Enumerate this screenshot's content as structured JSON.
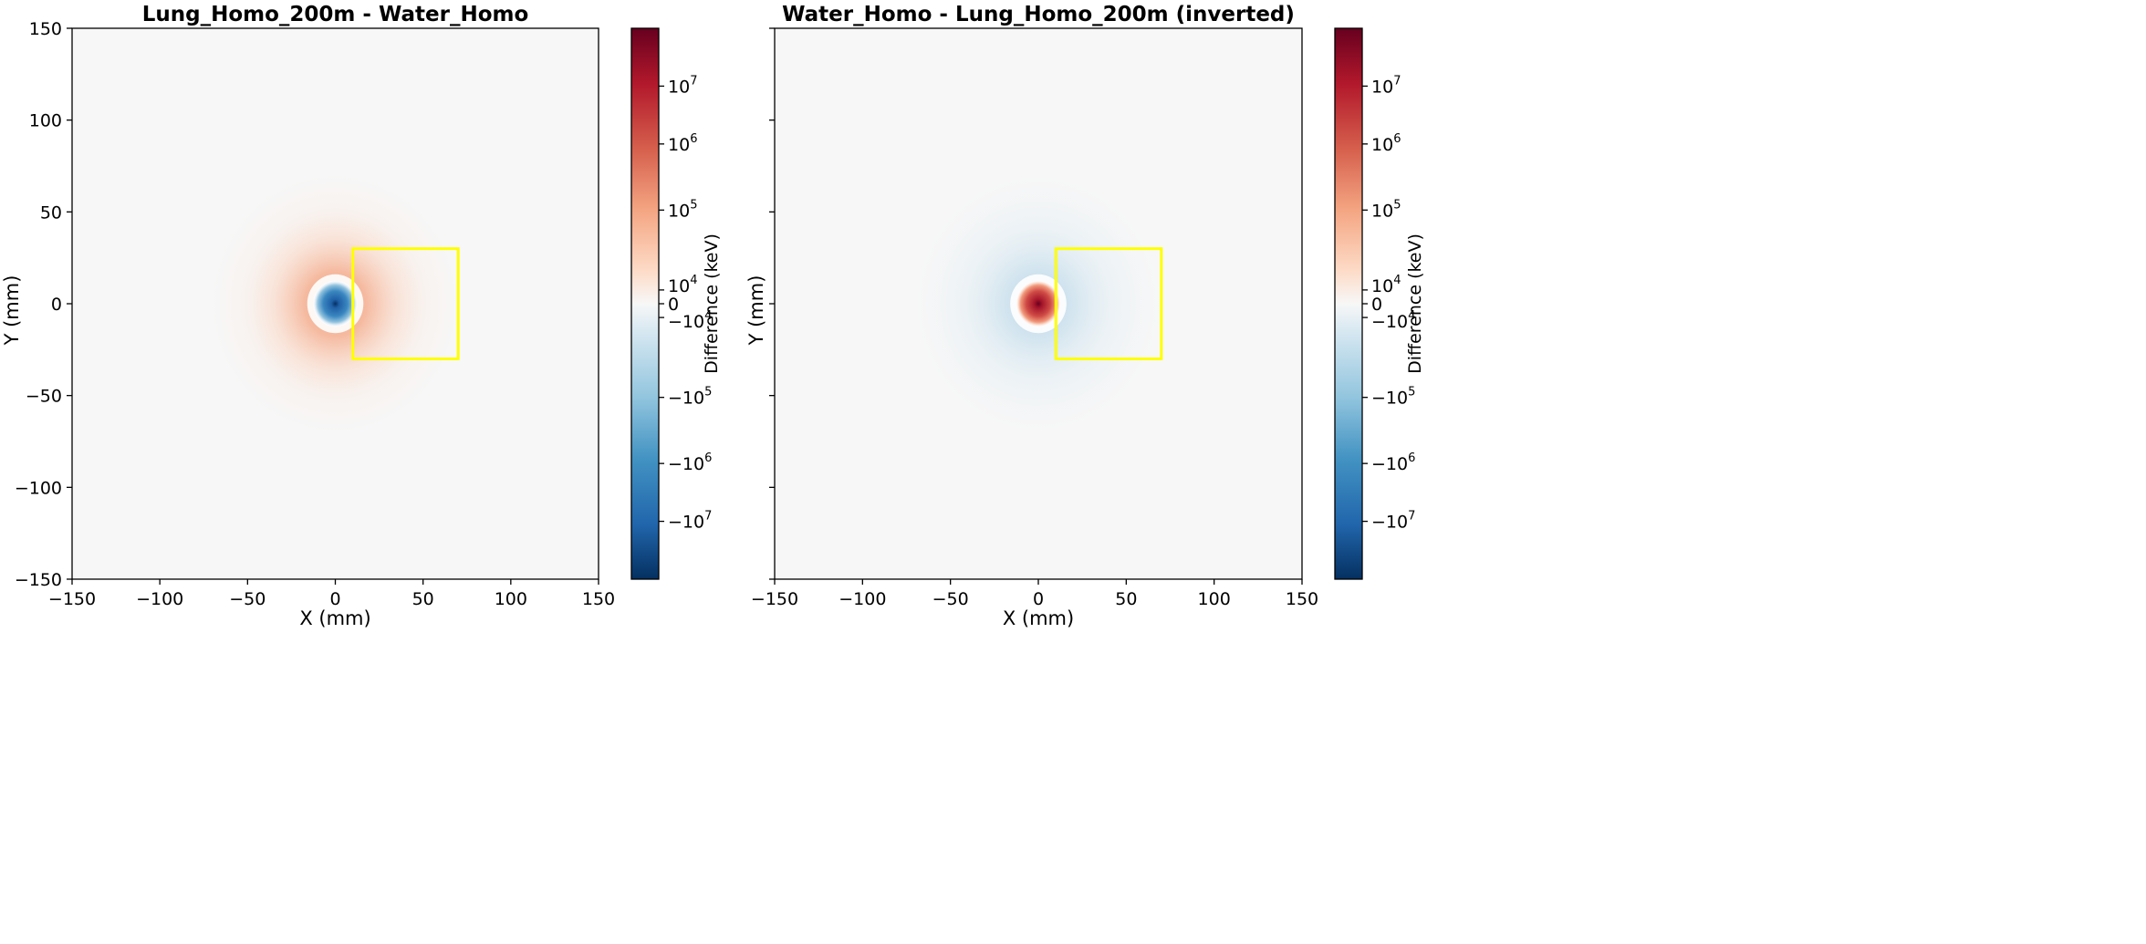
{
  "chart_data": [
    {
      "type": "heatmap",
      "title": "Lung_Homo_200m - Water_Homo",
      "xlabel": "X (mm)",
      "ylabel": "Y (mm)",
      "xlim": [
        -150,
        150
      ],
      "ylim": [
        -150,
        150
      ],
      "xticks": [
        -150,
        -100,
        -50,
        0,
        50,
        100,
        150
      ],
      "yticks": [
        -150,
        -100,
        -50,
        0,
        50,
        100,
        150
      ],
      "xtick_labels": [
        "−150",
        "−100",
        "−50",
        "0",
        "50",
        "100",
        "150"
      ],
      "ytick_labels": [
        "−150",
        "−100",
        "−50",
        "0",
        "50",
        "100",
        "150"
      ],
      "colormap": "RdBu_r",
      "scale": "symlog",
      "center": [
        0,
        0
      ],
      "core_sign": "negative",
      "halo_sign": "positive",
      "roi_box": {
        "x": [
          10,
          70
        ],
        "y": [
          -30,
          30
        ],
        "color": "#ffff00"
      },
      "colorbar": {
        "label": "Difference (keV)",
        "ticks": [
          {
            "sup": "7",
            "value": 10000000
          },
          {
            "sup": "6",
            "value": 1000000
          },
          {
            "sup": "5",
            "value": 100000
          },
          {
            "sup": "4",
            "value": 10000
          },
          {
            "text": "0",
            "value": 0
          },
          {
            "sup": "4",
            "value": -10000,
            "neg": true
          },
          {
            "sup": "5",
            "value": -100000,
            "neg": true
          },
          {
            "sup": "6",
            "value": -1000000,
            "neg": true
          },
          {
            "sup": "7",
            "value": -10000000,
            "neg": true
          }
        ]
      }
    },
    {
      "type": "heatmap",
      "title": "Water_Homo - Lung_Homo_200m (inverted)",
      "xlabel": "X (mm)",
      "ylabel": "Y (mm)",
      "xlim": [
        -150,
        150
      ],
      "ylim": [
        -150,
        150
      ],
      "xticks": [
        -150,
        -100,
        -50,
        0,
        50,
        100,
        150
      ],
      "yticks": [
        -150,
        -100,
        -50,
        0,
        50,
        100,
        150
      ],
      "xtick_labels": [
        "−150",
        "−100",
        "−50",
        "0",
        "50",
        "100",
        "150"
      ],
      "colormap": "RdBu_r",
      "scale": "symlog",
      "center": [
        0,
        0
      ],
      "core_sign": "positive",
      "halo_sign": "negative",
      "roi_box": {
        "x": [
          10,
          70
        ],
        "y": [
          -30,
          30
        ],
        "color": "#ffff00"
      },
      "colorbar": {
        "label": "Difference (keV)",
        "ticks": [
          {
            "sup": "7",
            "value": 10000000
          },
          {
            "sup": "6",
            "value": 1000000
          },
          {
            "sup": "5",
            "value": 100000
          },
          {
            "sup": "4",
            "value": 10000
          },
          {
            "text": "0",
            "value": 0
          },
          {
            "sup": "4",
            "value": -10000,
            "neg": true
          },
          {
            "sup": "5",
            "value": -100000,
            "neg": true
          },
          {
            "sup": "6",
            "value": -1000000,
            "neg": true
          },
          {
            "sup": "7",
            "value": -10000000,
            "neg": true
          }
        ]
      }
    }
  ],
  "colors": {
    "map_background": "#f7f7f7",
    "roi_box": "#ffff00",
    "axis": "#000000"
  }
}
